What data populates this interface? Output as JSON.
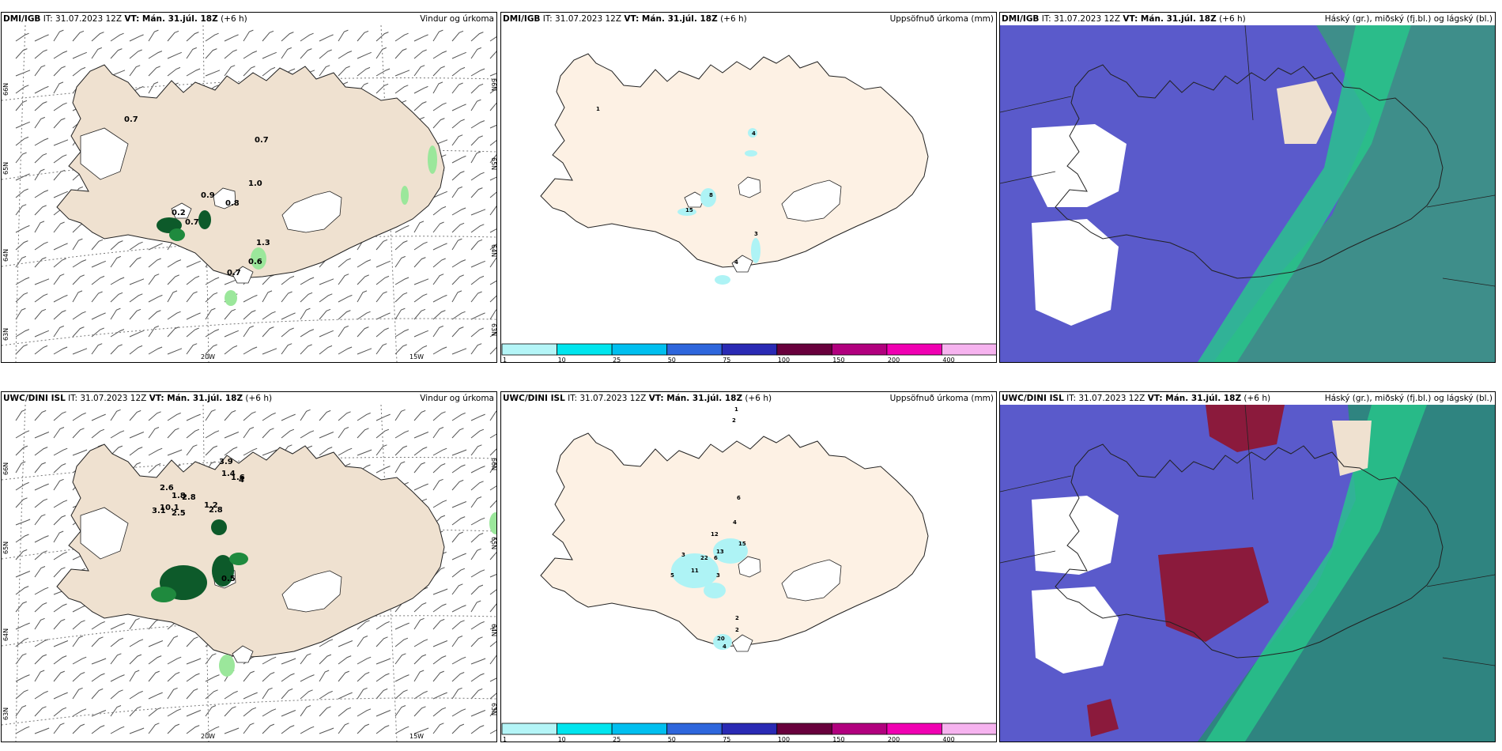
{
  "rows": [
    {
      "model": "DMI/IGB",
      "panels": [
        {
          "kind": "wind",
          "title_model": "DMI/IGB",
          "title_mid": " IT: 31.07.2023 12Z ",
          "vt_label": "VT: Mán. 31.júl. 18Z",
          "lead": " (+6 h)",
          "right": "Vindur og úrkoma",
          "lat_labels": [
            "66N",
            "65N",
            "64N",
            "63N"
          ],
          "lon_labels": [
            "20W",
            "15W"
          ],
          "values": [
            "0.7",
            "0.7",
            "1.0",
            "0.9",
            "0.8",
            "0.2",
            "0.7",
            "1.3",
            "0.6",
            "0.7"
          ]
        },
        {
          "kind": "accum",
          "title_model": "DMI/IGB",
          "title_mid": " IT: 31.07.2023 12Z ",
          "vt_label": "VT: Mán. 31.júl. 18Z",
          "lead": " (+6 h)",
          "right": "Uppsöfnuð úrkoma (mm)",
          "values": [
            "1",
            "4",
            "8",
            "15",
            "3",
            "4"
          ]
        },
        {
          "kind": "cloud",
          "title_model": "DMI/IGB",
          "title_mid": " IT: 31.07.2023 12Z ",
          "vt_label": "VT: Mán. 31.júl. 18Z",
          "lead": " (+6 h)",
          "right": "Háský (gr.), miðský (fj.bl.) og lágský (bl.)"
        }
      ]
    },
    {
      "model": "UWC/DINI ISL",
      "panels": [
        {
          "kind": "wind",
          "title_model": "UWC/DINI ISL",
          "title_mid": " IT: 31.07.2023 12Z ",
          "vt_label": "VT: Mán. 31.júl. 18Z",
          "lead": " (+6 h)",
          "right": "Vindur og úrkoma",
          "lat_labels": [
            "66N",
            "65N",
            "64N",
            "63N"
          ],
          "lon_labels": [
            "20W",
            "15W"
          ],
          "values": [
            "3.9",
            "1.4",
            "1.6",
            "4",
            "2.6",
            "1.8",
            "2.8",
            "10.1",
            "3.1",
            "2.5",
            "1.2",
            "2.8",
            "0.5"
          ]
        },
        {
          "kind": "accum",
          "title_model": "UWC/DINI ISL",
          "title_mid": " IT: 31.07.2023 12Z ",
          "vt_label": "VT: Mán. 31.júl. 18Z",
          "lead": " (+6 h)",
          "right": "Uppsöfnuð úrkoma (mm)",
          "values": [
            "1",
            "2",
            "6",
            "4",
            "12",
            "15",
            "13",
            "3",
            "22",
            "6",
            "11",
            "5",
            "3",
            "2",
            "2",
            "20",
            "4"
          ]
        },
        {
          "kind": "cloud",
          "title_model": "UWC/DINI ISL",
          "title_mid": " IT: 31.07.2023 12Z ",
          "vt_label": "VT: Mán. 31.júl. 18Z",
          "lead": " (+6 h)",
          "right": "Háský (gr.), miðský (fj.bl.) og lágský (bl.)"
        }
      ]
    }
  ],
  "colorbar": {
    "ticks": [
      "1",
      "10",
      "25",
      "50",
      "75",
      "100",
      "150",
      "200",
      "400"
    ],
    "colors": [
      "#b4f5f7",
      "#00e5ee",
      "#00bfef",
      "#2e66dc",
      "#2a2ab4",
      "#68003c",
      "#b1007e",
      "#f000b2",
      "#f6b3ef"
    ]
  },
  "colors": {
    "land": "#efe1d0",
    "land_accum": "#fdf1e4",
    "sea_cloud": "#5a5acb",
    "green_dark": "#0d5a2a",
    "green_light": "#9be79b",
    "cyan_light": "#aef3f5"
  }
}
